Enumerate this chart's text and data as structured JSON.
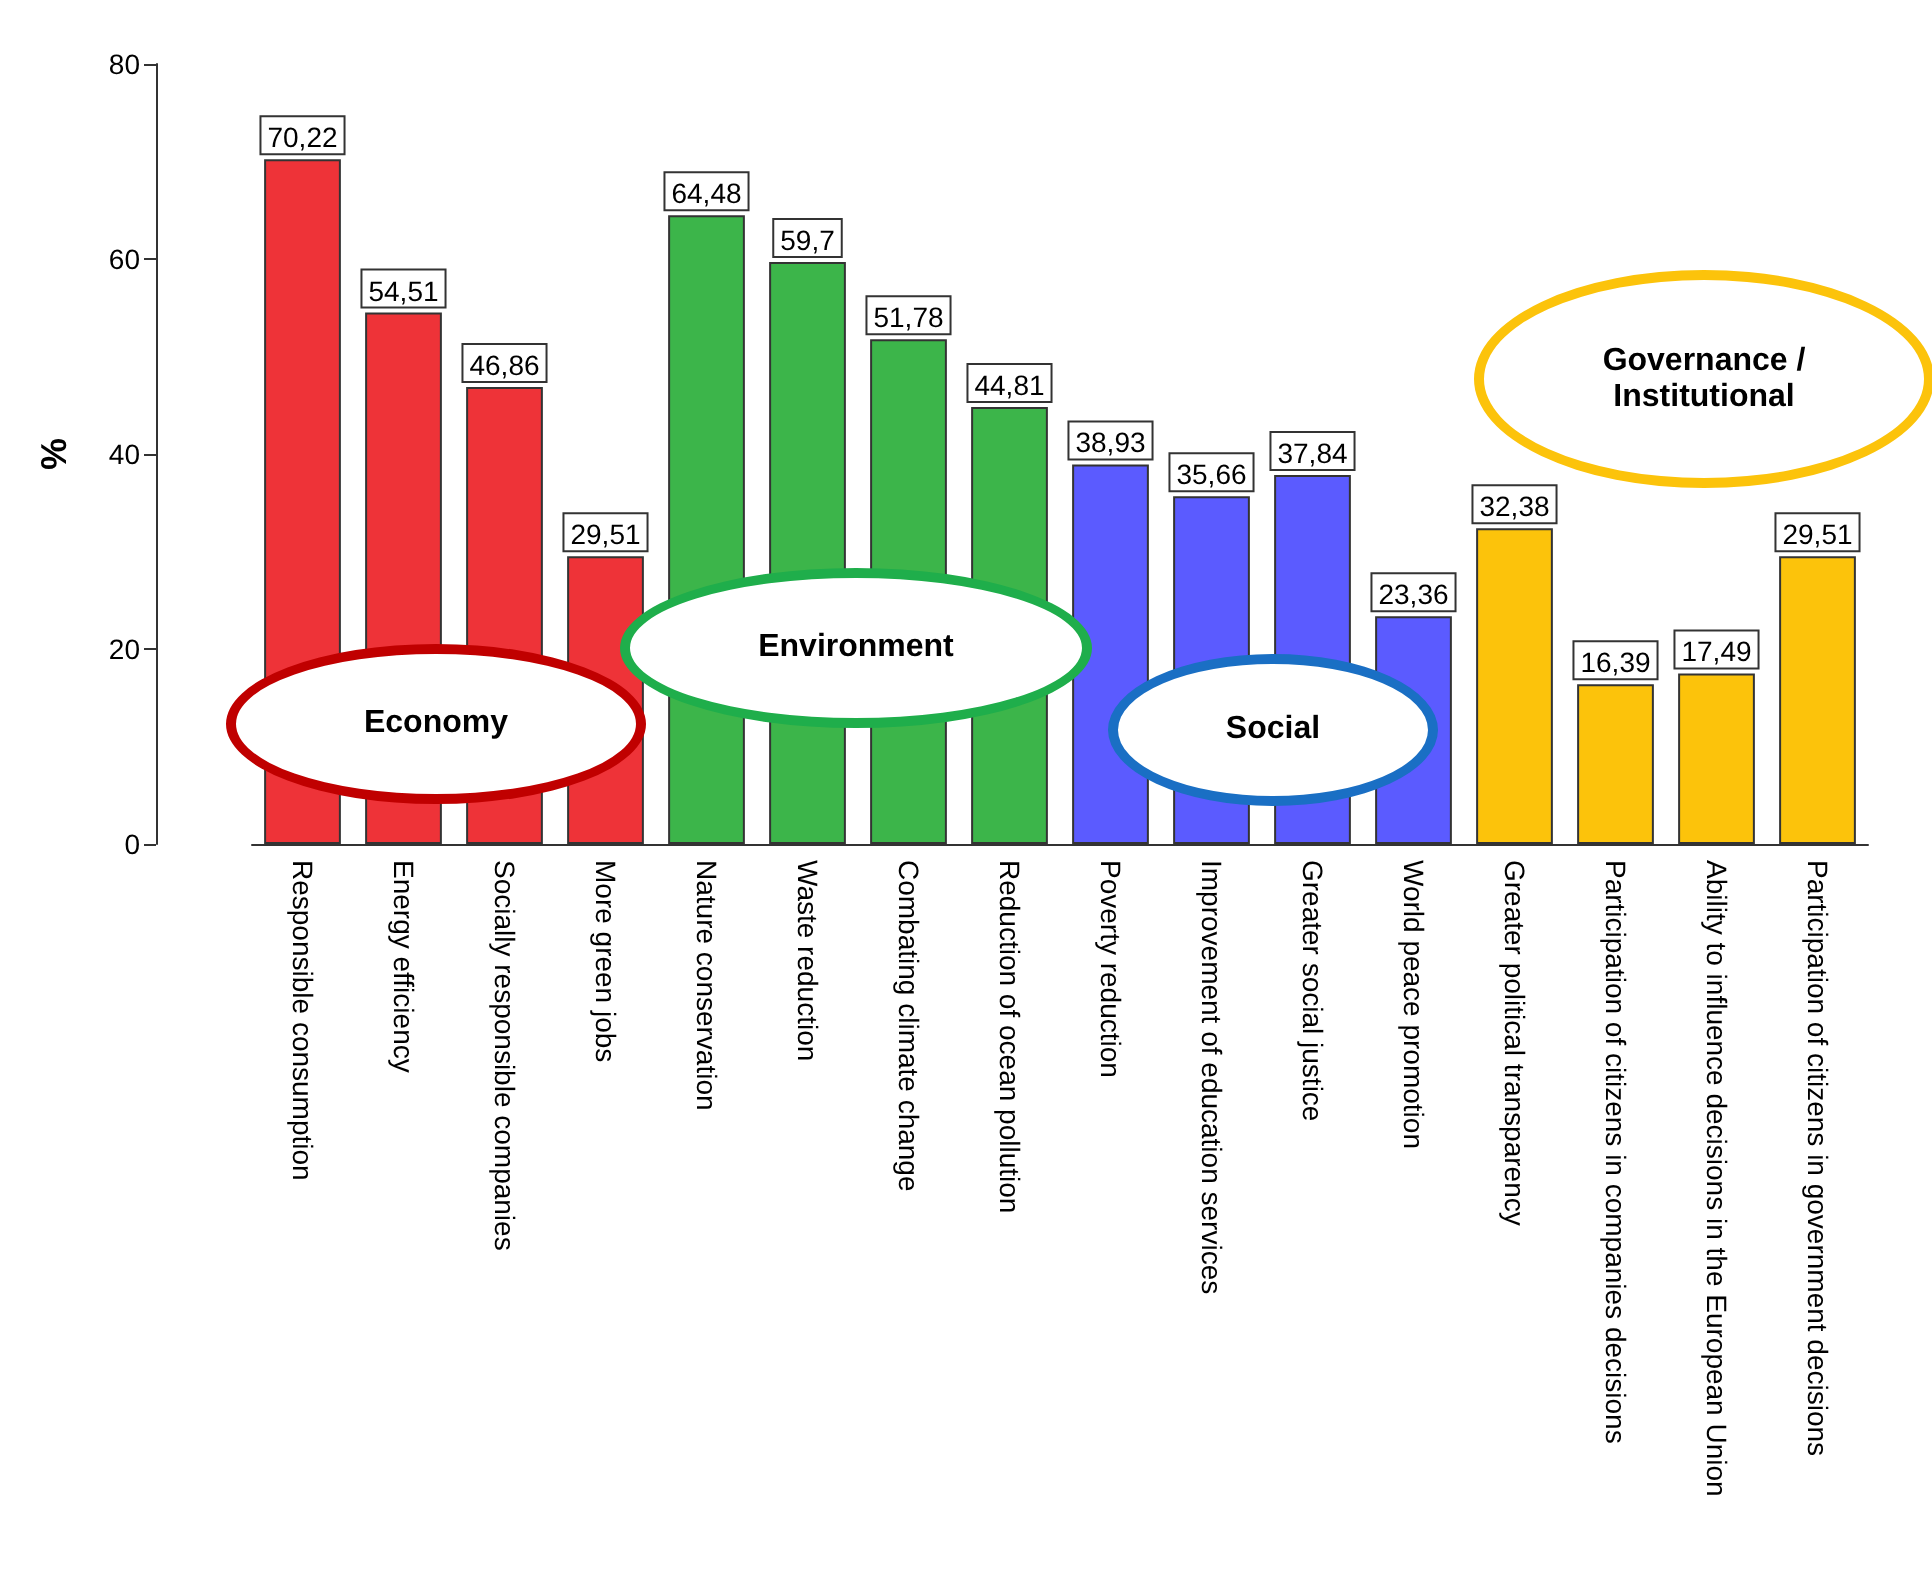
{
  "chart_data": {
    "type": "bar",
    "ylabel": "%",
    "categories": [
      "Responsible consumption",
      "Energy efficiency",
      "Socially responsible companies",
      "More green jobs",
      "Nature conservation",
      "Waste reduction",
      "Combating climate change",
      "Reduction of ocean pollution",
      "Poverty reduction",
      "Improvement of education services",
      "Greater social justice",
      "World peace promotion",
      "Greater political transparency",
      "Participation of citizens in companies decisions",
      "Ability to influence decisions in the European Union",
      "Participation of citizens in government decisions"
    ],
    "values": [
      70.22,
      54.51,
      46.86,
      29.51,
      64.48,
      59.7,
      51.78,
      44.81,
      38.93,
      35.66,
      37.84,
      23.36,
      32.38,
      16.39,
      17.49,
      29.51
    ],
    "value_labels": [
      "70,22",
      "54,51",
      "46,86",
      "29,51",
      "64,48",
      "59,7",
      "51,78",
      "44,81",
      "38,93",
      "35,66",
      "37,84",
      "23,36",
      "32,38",
      "16,39",
      "17,49",
      "29,51"
    ],
    "colors": [
      "#ee3338",
      "#ee3338",
      "#ee3338",
      "#ee3338",
      "#3cb54a",
      "#3cb54a",
      "#3cb54a",
      "#3cb54a",
      "#5b5bff",
      "#5b5bff",
      "#5b5bff",
      "#5b5bff",
      "#fcc30b",
      "#fcc30b",
      "#fcc30b",
      "#fcc30b"
    ],
    "ylim": [
      0,
      80
    ],
    "yticks": [
      0,
      20,
      40,
      60,
      80
    ],
    "annotations": [
      "Economy",
      "Environment",
      "Social",
      "Governance / Institutional"
    ]
  }
}
